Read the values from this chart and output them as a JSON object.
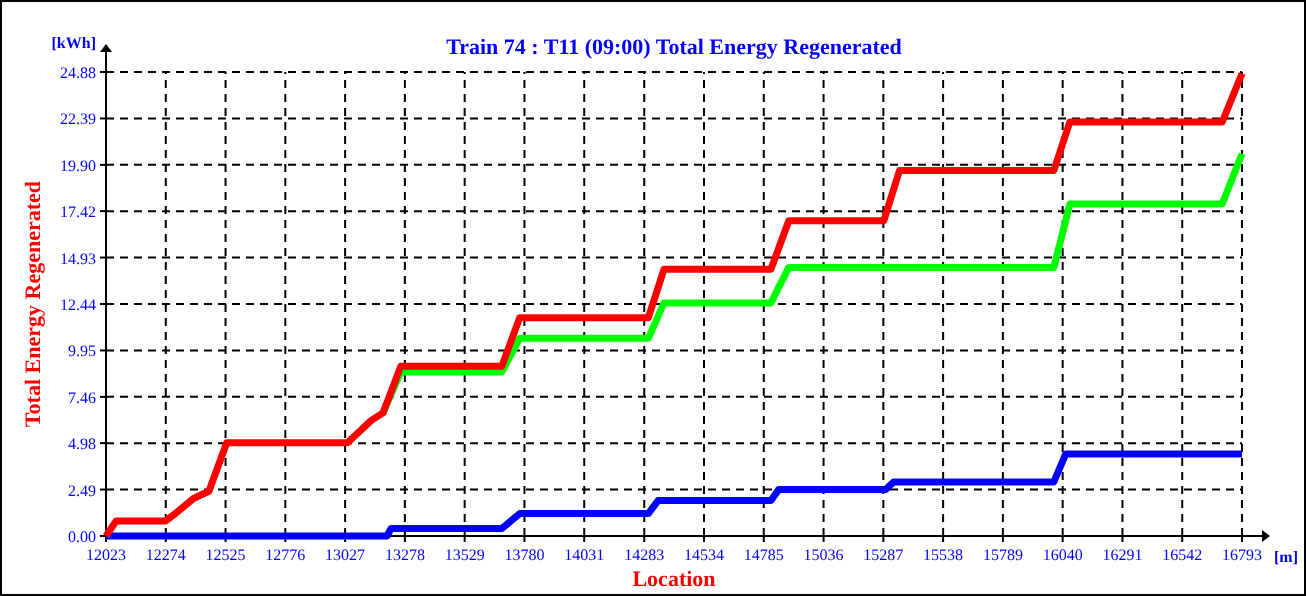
{
  "chart_data": {
    "type": "line",
    "title": "Train 74 : T11 (09:00) Total Energy Regenerated",
    "xlabel": "Location",
    "ylabel": "Total Energy Regenerated",
    "annotations": [
      "[kWh]",
      "[m]"
    ],
    "xlim": [
      12023,
      16793
    ],
    "xticks": [
      12023,
      12274,
      12525,
      12776,
      13027,
      13278,
      13529,
      13780,
      14031,
      14283,
      14534,
      14785,
      15036,
      15287,
      15538,
      15789,
      16040,
      16291,
      16542,
      16793
    ],
    "ylim": [
      0,
      24.88
    ],
    "yticks": [
      {
        "value": 0,
        "label": "0.00"
      },
      2.49,
      4.98,
      7.46,
      9.95,
      12.44,
      14.93,
      17.42,
      {
        "value": 19.9,
        "label": "19.90"
      },
      22.39,
      24.88
    ],
    "grid": true,
    "line_style": "solid",
    "marker": "none",
    "series": [
      {
        "color": "#0000ff",
        "x": [
          12023,
          13203,
          13220,
          13685,
          13760,
          14300,
          14341,
          14815,
          14848,
          15297,
          15330,
          16003,
          16053,
          16793
        ],
        "values": [
          0,
          0,
          0.4,
          0.4,
          1.2,
          1.2,
          1.9,
          1.9,
          2.5,
          2.5,
          2.9,
          2.9,
          4.4,
          4.4
        ]
      },
      {
        "color": "#00ff00",
        "x": [
          13186,
          13261,
          13685,
          13760,
          14300,
          14366,
          14815,
          14890,
          15289,
          15355,
          16003,
          16070,
          16710,
          16793
        ],
        "values": [
          6.6,
          8.8,
          8.8,
          10.6,
          10.6,
          12.5,
          12.5,
          14.4,
          14.4,
          14.4,
          14.4,
          17.8,
          17.8,
          20.5
        ]
      },
      {
        "color": "#ff0000",
        "x": [
          12023,
          12065,
          12272,
          12314,
          12389,
          12455,
          12530,
          13037,
          13137,
          13186,
          13261,
          13685,
          13760,
          14300,
          14366,
          14815,
          14890,
          15289,
          15355,
          16003,
          16070,
          16710,
          16793
        ],
        "values": [
          0,
          0.8,
          0.8,
          1.2,
          2.0,
          2.4,
          5.0,
          5.0,
          6.2,
          6.6,
          9.1,
          9.1,
          11.7,
          11.7,
          14.3,
          14.3,
          16.9,
          16.9,
          19.6,
          19.6,
          22.2,
          22.2,
          24.8
        ]
      }
    ]
  }
}
